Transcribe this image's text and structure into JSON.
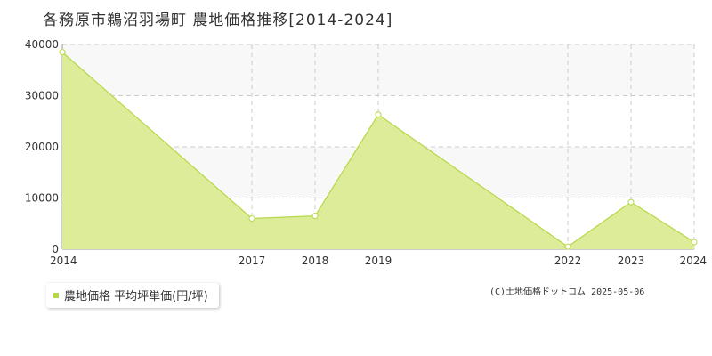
{
  "title": "各務原市鵜沼羽場町 農地価格推移[2014-2024]",
  "legend": {
    "label": "農地価格 平均坪単価(円/坪)"
  },
  "copyright": "(C)土地価格ドットコム 2025-05-06",
  "colors": {
    "area_fill": "#dcec98",
    "line": "#b5d84a",
    "band": "#f8f8f8",
    "grid": "#cccccc"
  },
  "chart_data": {
    "type": "area",
    "x": [
      "2014",
      "2017",
      "2018",
      "2019",
      "2022",
      "2023",
      "2024"
    ],
    "series": [
      {
        "name": "農地価格 平均坪単価(円/坪)",
        "values": [
          38500,
          6000,
          6500,
          26300,
          500,
          9200,
          1400
        ]
      }
    ],
    "yticks": [
      "0",
      "10000",
      "20000",
      "30000",
      "40000"
    ],
    "ylim": [
      0,
      40000
    ],
    "grid": true,
    "legend_position": "bottom-left"
  }
}
